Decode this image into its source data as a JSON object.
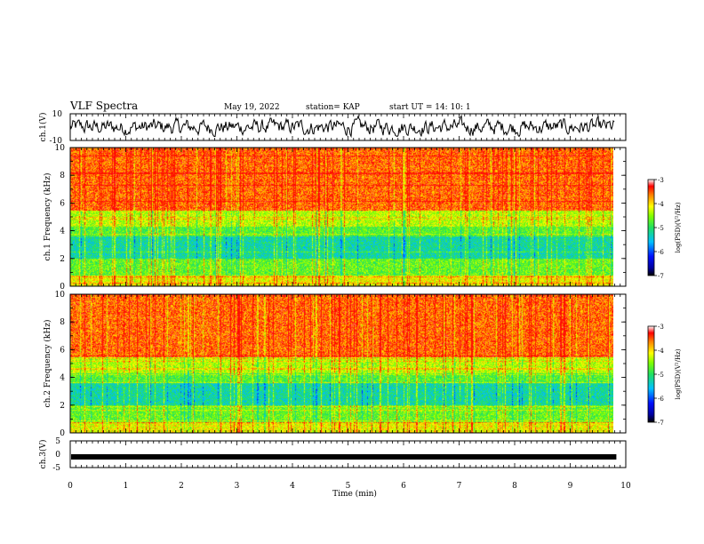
{
  "header": {
    "title": "VLF Spectra",
    "date": "May 19, 2022",
    "station": "station= KAP",
    "start": "start UT = 14: 10: 1"
  },
  "chart_data": [
    {
      "type": "line",
      "id": "ch1-waveform",
      "ylabel": "ch.1(V)",
      "ylim": [
        -10,
        10
      ],
      "y_ticks": [
        "10",
        "-10"
      ],
      "xlim": [
        0,
        10
      ]
    },
    {
      "type": "heatmap",
      "id": "ch1-spectrogram",
      "ylabel": "ch.1 Frequency (kHz)",
      "ylim": [
        0,
        10
      ],
      "y_ticks": [
        "0",
        "2",
        "4",
        "6",
        "8",
        "10"
      ],
      "xlim": [
        0,
        9.83
      ],
      "colorbar": {
        "label": "log(PSD)(V²/Hz)",
        "range": [
          -7,
          -3
        ],
        "ticks": [
          "-3",
          "-4",
          "-5",
          "-6",
          "-7"
        ]
      }
    },
    {
      "type": "heatmap",
      "id": "ch2-spectrogram",
      "ylabel": "ch.2 Frequency (kHz)",
      "ylim": [
        0,
        10
      ],
      "y_ticks": [
        "0",
        "2",
        "4",
        "6",
        "8",
        "10"
      ],
      "xlim": [
        0,
        9.83
      ],
      "colorbar": {
        "label": "log(PSD)(V²/Hz)",
        "range": [
          -7,
          -3
        ],
        "ticks": [
          "-3",
          "-4",
          "-5",
          "-6",
          "-7"
        ]
      }
    },
    {
      "type": "line",
      "id": "ch3-waveform",
      "ylabel": "ch.3(V)",
      "ylim": [
        -5,
        5
      ],
      "y_ticks": [
        "5",
        "0",
        "-5"
      ],
      "xlim": [
        0,
        10
      ],
      "values_note_level": -1
    }
  ],
  "x_axis": {
    "label": "Time (min)",
    "ticks": [
      "0",
      "1",
      "2",
      "3",
      "4",
      "5",
      "6",
      "7",
      "8",
      "9",
      "10"
    ],
    "range": [
      0,
      10
    ]
  }
}
